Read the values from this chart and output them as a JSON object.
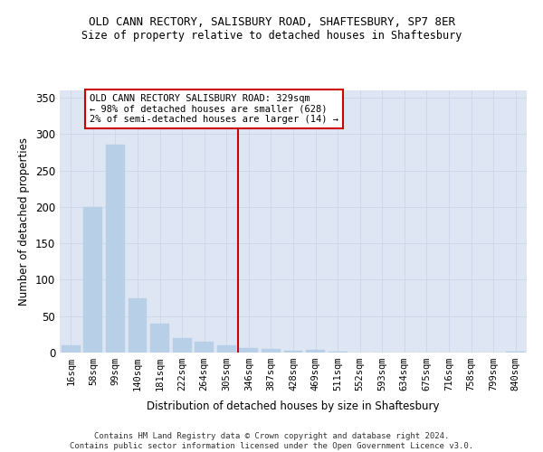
{
  "title": "OLD CANN RECTORY, SALISBURY ROAD, SHAFTESBURY, SP7 8ER",
  "subtitle": "Size of property relative to detached houses in Shaftesbury",
  "xlabel": "Distribution of detached houses by size in Shaftesbury",
  "ylabel": "Number of detached properties",
  "footnote": "Contains HM Land Registry data © Crown copyright and database right 2024.\nContains public sector information licensed under the Open Government Licence v3.0.",
  "bar_color": "#b8cfe8",
  "grid_color": "#cdd8ea",
  "background_color": "#dde6f2",
  "vline_color": "#cc0000",
  "annotation_text": "OLD CANN RECTORY SALISBURY ROAD: 329sqm\n← 98% of detached houses are smaller (628)\n2% of semi-detached houses are larger (14) →",
  "annotation_box_color": "#ffffff",
  "annotation_box_edge": "#cc0000",
  "bins": [
    "16sqm",
    "58sqm",
    "99sqm",
    "140sqm",
    "181sqm",
    "222sqm",
    "264sqm",
    "305sqm",
    "346sqm",
    "387sqm",
    "428sqm",
    "469sqm",
    "511sqm",
    "552sqm",
    "593sqm",
    "634sqm",
    "675sqm",
    "716sqm",
    "758sqm",
    "799sqm",
    "840sqm"
  ],
  "values": [
    10,
    200,
    285,
    75,
    40,
    20,
    15,
    10,
    6,
    5,
    3,
    4,
    1,
    0,
    0,
    0,
    0,
    0,
    0,
    0,
    1
  ],
  "ylim": [
    0,
    360
  ],
  "yticks": [
    0,
    50,
    100,
    150,
    200,
    250,
    300,
    350
  ]
}
